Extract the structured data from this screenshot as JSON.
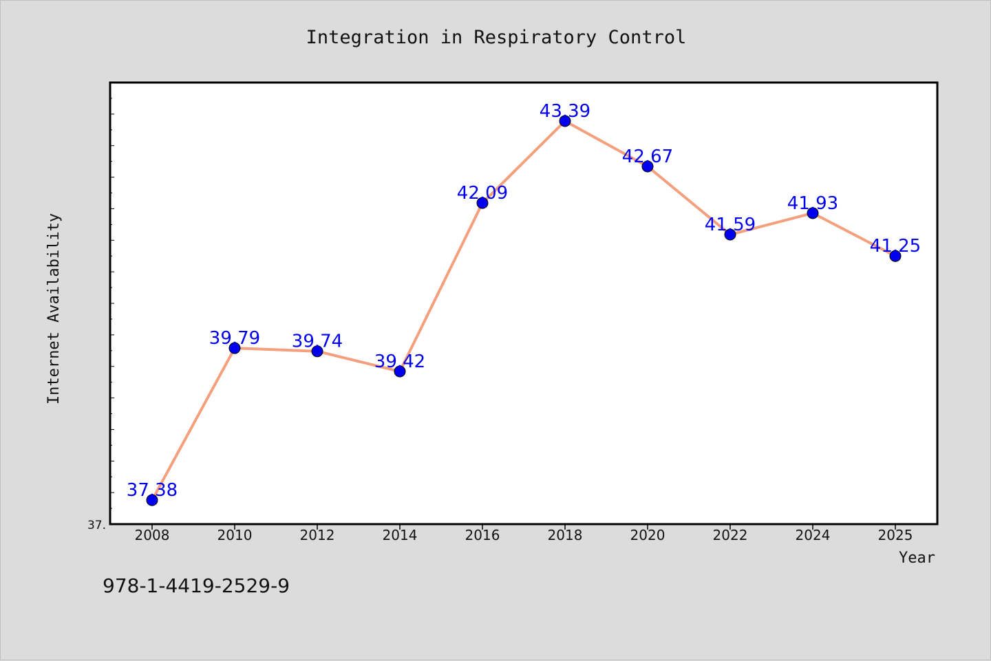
{
  "chart_data": {
    "type": "line",
    "title": "Integration in Respiratory Control",
    "xlabel": "Year",
    "ylabel": "Internet Availability",
    "categories": [
      "2008",
      "2010",
      "2012",
      "2014",
      "2016",
      "2018",
      "2020",
      "2022",
      "2024",
      "2025"
    ],
    "series": [
      {
        "values": [
          37.38,
          39.79,
          39.74,
          39.42,
          42.09,
          43.39,
          42.67,
          41.59,
          41.93,
          41.25
        ],
        "labels": [
          "37.38",
          "39.79",
          "39.74",
          "39.42",
          "42.09",
          "43.39",
          "42.67",
          "41.59",
          "41.93",
          "41.25"
        ],
        "line_color": "#f4a07e",
        "marker_color": "#0000ee",
        "label_color": "#0000ee"
      }
    ],
    "y_tick_label": "37.",
    "ylim": [
      37.0,
      44.0
    ],
    "grid": false,
    "legend": "none"
  },
  "footer": {
    "code": "978-1-4419-2529-9"
  },
  "colors": {
    "background": "#dcdcdc",
    "plot_background": "#ffffff",
    "axis": "#000000"
  }
}
